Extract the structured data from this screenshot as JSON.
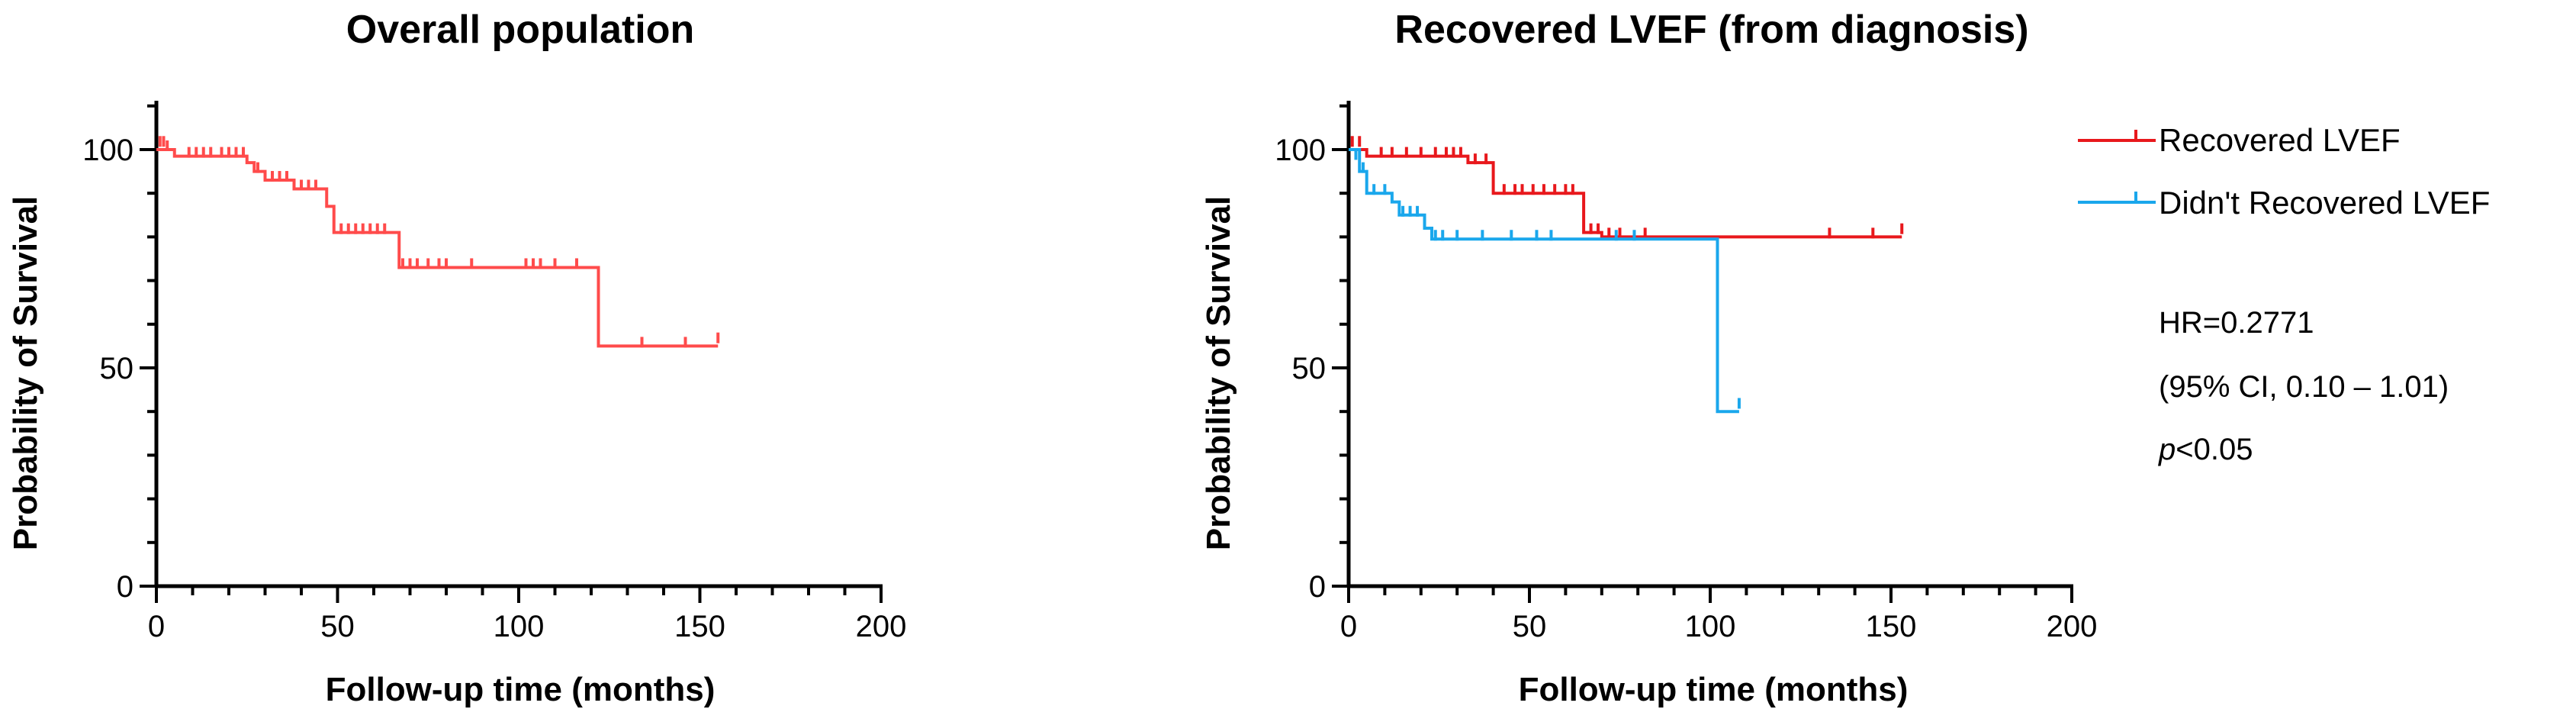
{
  "chart_data": [
    {
      "type": "line",
      "subtype": "kaplan-meier",
      "title": "Overall population",
      "xlabel": "Follow-up time (months)",
      "ylabel": "Probability of Survival",
      "xlim": [
        0,
        200
      ],
      "ylim": [
        0,
        100
      ],
      "xticks": [
        0,
        50,
        100,
        150,
        200
      ],
      "yticks": [
        0,
        50,
        100
      ],
      "x_tick_labels": [
        "0",
        "50",
        "100",
        "150",
        "200"
      ],
      "y_tick_labels": [
        "0",
        "50",
        "100"
      ],
      "series": [
        {
          "name": "Overall population",
          "color": "#ff4b4b",
          "steps": [
            [
              0,
              100
            ],
            [
              5,
              98.5
            ],
            [
              25,
              97
            ],
            [
              27,
              95
            ],
            [
              30,
              93
            ],
            [
              38,
              91
            ],
            [
              47,
              87
            ],
            [
              49,
              81
            ],
            [
              67,
              73
            ],
            [
              122,
              55
            ],
            [
              155,
              55
            ]
          ],
          "censored": [
            [
              1,
              101
            ],
            [
              2,
              101
            ],
            [
              3,
              100
            ],
            [
              9,
              98.5
            ],
            [
              11,
              98.5
            ],
            [
              13,
              98.5
            ],
            [
              15,
              98.5
            ],
            [
              18,
              98.5
            ],
            [
              20,
              98.5
            ],
            [
              22,
              98.5
            ],
            [
              24,
              98.5
            ],
            [
              28,
              95
            ],
            [
              32,
              93
            ],
            [
              34,
              93
            ],
            [
              36,
              93
            ],
            [
              40,
              91
            ],
            [
              42,
              91
            ],
            [
              44,
              91
            ],
            [
              51,
              81
            ],
            [
              53,
              81
            ],
            [
              55,
              81
            ],
            [
              57,
              81
            ],
            [
              59,
              81
            ],
            [
              61,
              81
            ],
            [
              63,
              81
            ],
            [
              68,
              73
            ],
            [
              70,
              73
            ],
            [
              72,
              73
            ],
            [
              75,
              73
            ],
            [
              78,
              73
            ],
            [
              80,
              73
            ],
            [
              87,
              73
            ],
            [
              102,
              73
            ],
            [
              104,
              73
            ],
            [
              106,
              73
            ],
            [
              110,
              73
            ],
            [
              116,
              73
            ],
            [
              134,
              55
            ],
            [
              146,
              55
            ],
            [
              155,
              56
            ]
          ]
        }
      ]
    },
    {
      "type": "line",
      "subtype": "kaplan-meier",
      "title": "Recovered LVEF (from diagnosis)",
      "xlabel": "Follow-up time (months)",
      "ylabel": "Probability of Survival",
      "xlim": [
        0,
        200
      ],
      "ylim": [
        0,
        100
      ],
      "xticks": [
        0,
        50,
        100,
        150,
        200
      ],
      "yticks": [
        0,
        50,
        100
      ],
      "x_tick_labels": [
        "0",
        "50",
        "100",
        "150",
        "200"
      ],
      "y_tick_labels": [
        "0",
        "50",
        "100"
      ],
      "legend": [
        "Recovered LVEF",
        "Didn't Recovered LVEF"
      ],
      "annotations": {
        "hr": "HR=0.2771",
        "ci": "(95% CI, 0.10 – 1.01)",
        "p_symbol": "p",
        "p_rest": "<0.05"
      },
      "series": [
        {
          "name": "Recovered LVEF",
          "color": "#e8181c",
          "steps": [
            [
              0,
              100
            ],
            [
              5,
              98.5
            ],
            [
              33,
              97
            ],
            [
              40,
              90
            ],
            [
              65,
              81
            ],
            [
              70,
              80
            ],
            [
              153,
              80
            ]
          ],
          "censored": [
            [
              1,
              101
            ],
            [
              3,
              101
            ],
            [
              9,
              98.5
            ],
            [
              12,
              98.5
            ],
            [
              16,
              98.5
            ],
            [
              20,
              98.5
            ],
            [
              24,
              98.5
            ],
            [
              27,
              98.5
            ],
            [
              29,
              98.5
            ],
            [
              31,
              98.5
            ],
            [
              35,
              97
            ],
            [
              38,
              97
            ],
            [
              43,
              90
            ],
            [
              46,
              90
            ],
            [
              48,
              90
            ],
            [
              51,
              90
            ],
            [
              54,
              90
            ],
            [
              57,
              90
            ],
            [
              60,
              90
            ],
            [
              62,
              90
            ],
            [
              67,
              81
            ],
            [
              69,
              81
            ],
            [
              72,
              80
            ],
            [
              75,
              80
            ],
            [
              82,
              80
            ],
            [
              133,
              80
            ],
            [
              145,
              80
            ],
            [
              153,
              81
            ]
          ]
        },
        {
          "name": "Didn't Recovered LVEF",
          "color": "#1aa7ec",
          "steps": [
            [
              0,
              100
            ],
            [
              3,
              95
            ],
            [
              5,
              90
            ],
            [
              12,
              88
            ],
            [
              14,
              85
            ],
            [
              21,
              82
            ],
            [
              23,
              79.5
            ],
            [
              102,
              79.5
            ],
            [
              102,
              40
            ],
            [
              108,
              40
            ]
          ],
          "censored": [
            [
              2,
              98
            ],
            [
              4,
              95
            ],
            [
              7,
              90
            ],
            [
              10,
              90
            ],
            [
              15,
              85
            ],
            [
              17,
              85
            ],
            [
              19,
              85
            ],
            [
              24,
              79.5
            ],
            [
              26,
              79.5
            ],
            [
              30,
              79.5
            ],
            [
              37,
              79.5
            ],
            [
              45,
              79.5
            ],
            [
              52,
              79.5
            ],
            [
              56,
              79.5
            ],
            [
              74,
              79.5
            ],
            [
              79,
              79.5
            ],
            [
              108,
              41
            ]
          ]
        }
      ]
    }
  ]
}
